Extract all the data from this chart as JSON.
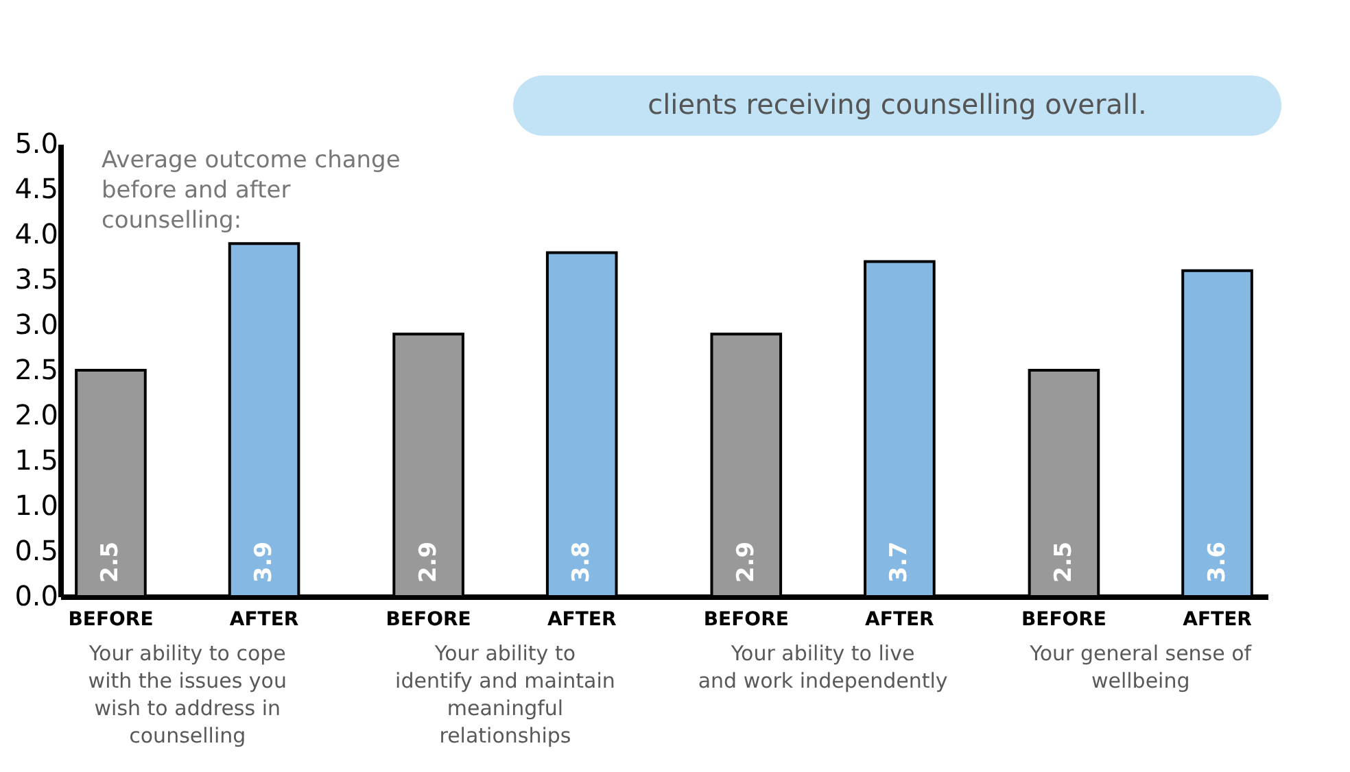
{
  "chart_data": {
    "type": "bar",
    "title": "Average outcome change before and after counselling:",
    "categories": [
      "Your ability to cope with the issues you wish to address in counselling",
      "Your ability to identify and maintain meaningful relationships",
      "Your ability to live and work independently",
      "Your general sense of wellbeing"
    ],
    "series": [
      {
        "name": "BEFORE",
        "color": "#999999",
        "values": [
          2.5,
          2.9,
          2.9,
          2.5
        ]
      },
      {
        "name": "AFTER",
        "color": "#85b9e3",
        "values": [
          3.9,
          3.8,
          3.7,
          3.6
        ]
      }
    ],
    "ylim": [
      0,
      5
    ],
    "yticks": [
      {
        "value": 0,
        "label": "0.0"
      },
      {
        "value": 0.5,
        "label": "0.5"
      },
      {
        "value": 1,
        "label": "1.0"
      },
      {
        "value": 1.5,
        "label": "1.5"
      },
      {
        "value": 2,
        "label": "2.0"
      },
      {
        "value": 2.5,
        "label": "2.5"
      },
      {
        "value": 3,
        "label": "3.0"
      },
      {
        "value": 3.5,
        "label": "3.5"
      },
      {
        "value": 4,
        "label": "4.0"
      },
      {
        "value": 4.5,
        "label": "4.5"
      },
      {
        "value": 5,
        "label": "5.0"
      }
    ],
    "data_labels": true,
    "grid": false,
    "legend": false,
    "annotations": [
      "clients receiving counselling overall."
    ]
  }
}
